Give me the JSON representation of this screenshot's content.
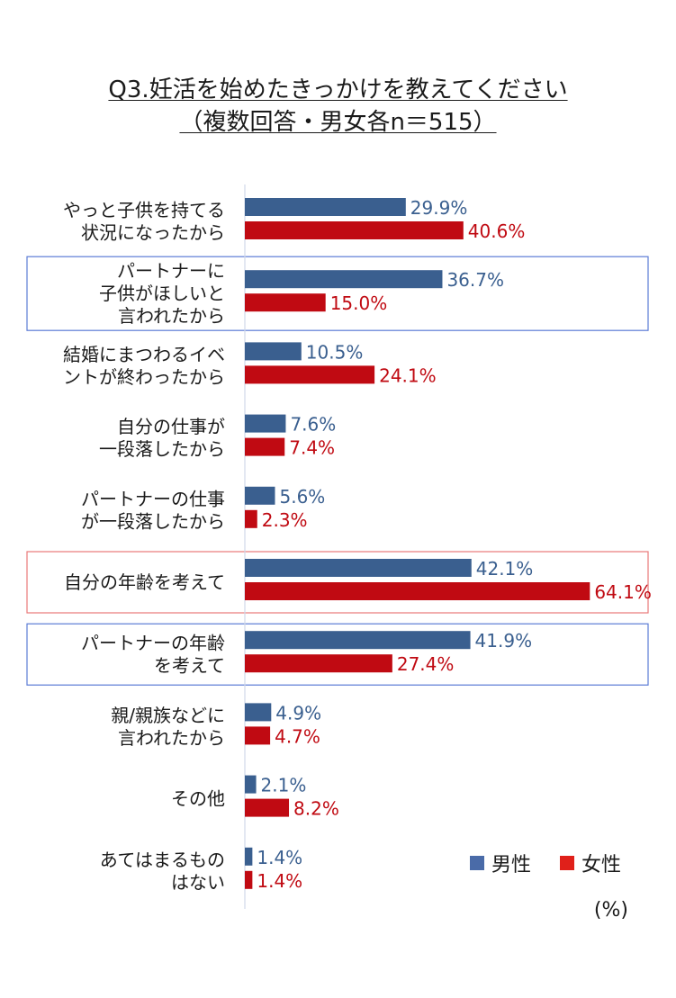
{
  "chart_data": {
    "type": "bar",
    "orientation": "horizontal",
    "title": [
      "Q3.妊活を始めたきっかけを教えてください",
      "（複数回答・男女各n＝515）"
    ],
    "categories": [
      [
        "やっと子供を持てる",
        "状況になったから"
      ],
      [
        "パートナーに",
        "子供がほしいと",
        "言われたから"
      ],
      [
        "結婚にまつわるイベ",
        "ントが終わったから"
      ],
      [
        "自分の仕事が",
        "一段落したから"
      ],
      [
        "パートナーの仕事",
        "が一段落したから"
      ],
      [
        "自分の年齢を考えて"
      ],
      [
        "パートナーの年齢",
        "を考えて"
      ],
      [
        "親/親族などに",
        "言われたから"
      ],
      [
        "その他"
      ],
      [
        "あてはまるもの",
        "はない"
      ]
    ],
    "series": [
      {
        "name": "男性",
        "color": "#3A5F8F",
        "values": [
          29.9,
          36.7,
          10.5,
          7.6,
          5.6,
          42.1,
          41.9,
          4.9,
          2.1,
          1.4
        ],
        "labels": [
          "29.9%",
          "36.7%",
          "10.5%",
          "7.6%",
          "5.6%",
          "42.1%",
          "41.9%",
          "4.9%",
          "2.1%",
          "1.4%"
        ]
      },
      {
        "name": "女性",
        "color": "#C00A12",
        "values": [
          40.6,
          15.0,
          24.1,
          7.4,
          2.3,
          64.1,
          27.4,
          4.7,
          8.2,
          1.4
        ],
        "labels": [
          "40.6%",
          "15.0%",
          "24.1%",
          "7.4%",
          "2.3%",
          "64.1%",
          "27.4%",
          "4.7%",
          "8.2%",
          "1.4%"
        ]
      }
    ],
    "highlight_boxes": [
      {
        "category_index": 1,
        "color": "#5B7BD5"
      },
      {
        "category_index": 5,
        "color": "#E87878"
      },
      {
        "category_index": 6,
        "color": "#5B7BD5"
      }
    ],
    "unit": "(%)",
    "legend_position": "bottom-right",
    "grid": false
  }
}
